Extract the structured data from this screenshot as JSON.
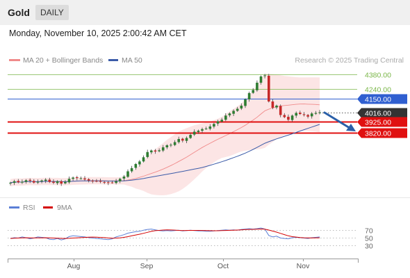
{
  "header": {
    "symbol": "Gold",
    "period": "DAILY",
    "datetime": "Monday, November 10, 2025 2:00:42 AM CET"
  },
  "legend": {
    "ma20_bb": "MA 20 + Bollinger Bands",
    "ma50": "MA 50",
    "rsi": "RSI",
    "ma9": "9MA"
  },
  "credit": "Research © 2025 Trading Central",
  "colors": {
    "bollinger": "#f08a8a",
    "ma50": "#3b5ba8",
    "rsi": "#5b7fd6",
    "ma9": "#d40000",
    "resistance": "#7ab648",
    "pivot": "#2f5fd0",
    "support": "#e01010",
    "last": "#333333",
    "arrow": "#2a5fa8",
    "candle_up": "#2e7d32",
    "candle_down": "#c62828"
  },
  "chart_data": {
    "type": "candlestick",
    "price_levels": [
      {
        "name": "resistance-2",
        "value": 4380.0,
        "label": "4380.00",
        "kind": "resistance"
      },
      {
        "name": "resistance-1",
        "value": 4240.0,
        "label": "4240.00",
        "kind": "resistance"
      },
      {
        "name": "pivot",
        "value": 4150.0,
        "label": "4150.00",
        "kind": "pivot"
      },
      {
        "name": "last",
        "value": 4016.0,
        "label": "4016.00",
        "kind": "last"
      },
      {
        "name": "support-1",
        "value": 3925.0,
        "label": "3925.00",
        "kind": "support"
      },
      {
        "name": "support-2",
        "value": 3820.0,
        "label": "3820.00",
        "kind": "support"
      }
    ],
    "x_labels": [
      "Aug",
      "Sep",
      "Oct",
      "Nov"
    ],
    "rsi_levels": [
      70,
      50,
      30
    ],
    "close": [
      3340,
      3355,
      3345,
      3350,
      3365,
      3360,
      3342,
      3350,
      3362,
      3370,
      3348,
      3340,
      3355,
      3332,
      3348,
      3378,
      3390,
      3385,
      3382,
      3372,
      3362,
      3358,
      3355,
      3350,
      3345,
      3340,
      3342,
      3355,
      3378,
      3400,
      3450,
      3480,
      3520,
      3545,
      3585,
      3635,
      3650,
      3640,
      3652,
      3680,
      3700,
      3705,
      3730,
      3760,
      3745,
      3770,
      3800,
      3830,
      3840,
      3855,
      3860,
      3880,
      3905,
      3930,
      3945,
      3985,
      4005,
      4030,
      4050,
      4080,
      4140,
      4200,
      4230,
      4300,
      4360,
      4370,
      4120,
      4060,
      4080,
      3990,
      3970,
      3945,
      3985,
      4010,
      4000,
      3990,
      3975,
      4005,
      4010,
      4016
    ],
    "rsi": [
      48,
      50,
      49,
      52,
      50,
      47,
      49,
      52,
      51,
      50,
      46,
      45,
      48,
      44,
      47,
      53,
      55,
      54,
      53,
      52,
      50,
      49,
      48,
      47,
      46,
      45,
      47,
      52,
      55,
      58,
      62,
      64,
      66,
      67,
      70,
      72,
      73,
      71,
      69,
      68,
      69,
      68,
      69,
      70,
      68,
      69,
      70,
      69,
      68,
      68,
      67,
      67,
      68,
      69,
      70,
      71,
      70,
      71,
      70,
      72,
      73,
      74,
      73,
      74,
      76,
      73,
      56,
      52,
      54,
      49,
      48,
      47,
      50,
      51,
      50,
      49,
      48,
      50,
      51,
      52
    ],
    "rsi_ma9": [
      48,
      48.5,
      49,
      49.5,
      49.8,
      49.5,
      49.3,
      49.5,
      49.7,
      49.9,
      49.5,
      49,
      48.6,
      48.1,
      47.9,
      48.4,
      49,
      49.6,
      50.2,
      50.8,
      51.3,
      51.6,
      51.3,
      50.8,
      50.1,
      49.3,
      48.7,
      48.8,
      49.5,
      50.9,
      52.8,
      55,
      57.2,
      59.3,
      61.7,
      64.3,
      66.9,
      68.7,
      69.5,
      70.3,
      70.9,
      70.6,
      70.2,
      69.5,
      69.1,
      69.3,
      69.4,
      69.5,
      69.4,
      69.2,
      68.9,
      68.7,
      68.5,
      68.6,
      68.9,
      69.2,
      69.6,
      70,
      70.4,
      71,
      71.6,
      72.1,
      72.3,
      72.6,
      73.1,
      72.7,
      70.4,
      67.6,
      64.9,
      61.4,
      58.1,
      55,
      52.8,
      51.6,
      50.6,
      49.9,
      49.5,
      49.3,
      49.4,
      49.8
    ]
  }
}
